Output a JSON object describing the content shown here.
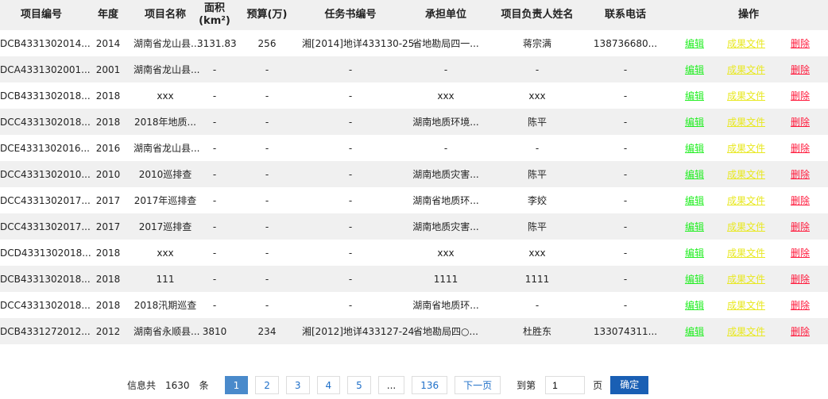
{
  "headers": [
    "项目编号",
    "年度",
    "项目名称",
    "面积(km²)",
    "预算(万)",
    "任务书编号",
    "承担单位",
    "项目负责人姓名",
    "联系电话",
    "操作"
  ],
  "actions": {
    "edit": "编辑",
    "files": "成果文件",
    "delete": "删除"
  },
  "rows": [
    [
      "DCB4331302014...",
      "2014",
      "湖南省龙山县...",
      "3131.83",
      "256",
      "湘[2014]地详433130-25",
      "省地勘局四一...",
      "蒋宗满",
      "138736680..."
    ],
    [
      "DCA4331302001...",
      "2001",
      "湖南省龙山县...",
      "-",
      "-",
      "-",
      "-",
      "-",
      "-"
    ],
    [
      "DCB4331302018...",
      "2018",
      "xxx",
      "-",
      "-",
      "-",
      "xxx",
      "xxx",
      "-"
    ],
    [
      "DCC4331302018...",
      "2018",
      "2018年地质...",
      "-",
      "-",
      "-",
      "湖南地质环境...",
      "陈平",
      "-"
    ],
    [
      "DCE4331302016...",
      "2016",
      "湖南省龙山县...",
      "-",
      "-",
      "-",
      "-",
      "-",
      "-"
    ],
    [
      "DCC4331302010...",
      "2010",
      "2010巡排查",
      "-",
      "-",
      "-",
      "湖南地质灾害...",
      "陈平",
      "-"
    ],
    [
      "DCC4331302017...",
      "2017",
      "2017年巡排查",
      "-",
      "-",
      "-",
      "湖南省地质环...",
      "李姣",
      "-"
    ],
    [
      "DCC4331302017...",
      "2017",
      "2017巡排查",
      "-",
      "-",
      "-",
      "湖南地质灾害...",
      "陈平",
      "-"
    ],
    [
      "DCD4331302018...",
      "2018",
      "xxx",
      "-",
      "-",
      "-",
      "xxx",
      "xxx",
      "-"
    ],
    [
      "DCB4331302018...",
      "2018",
      "111",
      "-",
      "-",
      "-",
      "1111",
      "1111",
      "-"
    ],
    [
      "DCC4331302018...",
      "2018",
      "2018汛期巡查",
      "-",
      "-",
      "-",
      "湖南省地质环...",
      "-",
      "-"
    ],
    [
      "DCB4331272012...",
      "2012",
      "湖南省永顺县...",
      "3810",
      "234",
      "湘[2012]地详433127-24",
      "省地勘局四○...",
      "杜胜东",
      "133074311..."
    ]
  ],
  "pager": {
    "prefix": "信息共",
    "total": "1630",
    "suffix": "条",
    "pages": [
      "1",
      "2",
      "3",
      "4",
      "5",
      "...",
      "136"
    ],
    "next": "下一页",
    "goto": "到第",
    "page_value": "1",
    "page_unit": "页",
    "confirm": "确定"
  }
}
